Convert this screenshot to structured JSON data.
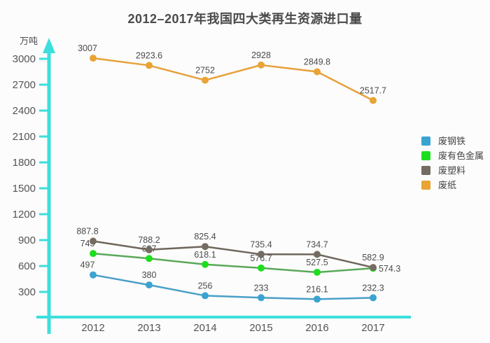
{
  "chart_data": {
    "type": "line",
    "title": "2012–2017年我国四大类再生资源进口量",
    "ylabel": "万吨",
    "xlabel": "",
    "categories": [
      "2012",
      "2013",
      "2014",
      "2015",
      "2016",
      "2017"
    ],
    "series": [
      {
        "name": "废钢铁",
        "line_color": "#4A9FC7",
        "dot_color": "#3BA3D0",
        "values": [
          497,
          380,
          256,
          233,
          216.1,
          232.3
        ]
      },
      {
        "name": "废有色金属",
        "line_color": "#5AA85A",
        "dot_color": "#1DDE1D",
        "values": [
          745,
          687,
          618.1,
          576.7,
          527.5,
          574.3
        ]
      },
      {
        "name": "废塑料",
        "line_color": "#6F665C",
        "dot_color": "#746B61",
        "values": [
          887.8,
          788.2,
          825.4,
          735.4,
          734.7,
          582.9
        ]
      },
      {
        "name": "废纸",
        "line_color": "#E7A13B",
        "dot_color": "#E9A435",
        "values": [
          3007,
          2923.6,
          2752,
          2928,
          2849.8,
          2517.7
        ]
      }
    ],
    "yticks": [
      300,
      600,
      900,
      1200,
      1500,
      1800,
      2100,
      2400,
      2700,
      3000
    ],
    "ylim": [
      0,
      3100
    ],
    "grid": false,
    "legend_position": "right",
    "axis_color": "#3CDFDC",
    "tick_label_color": "#545454",
    "data_label_color": "#4B4B4B",
    "title_color": "#4A4A4A"
  }
}
